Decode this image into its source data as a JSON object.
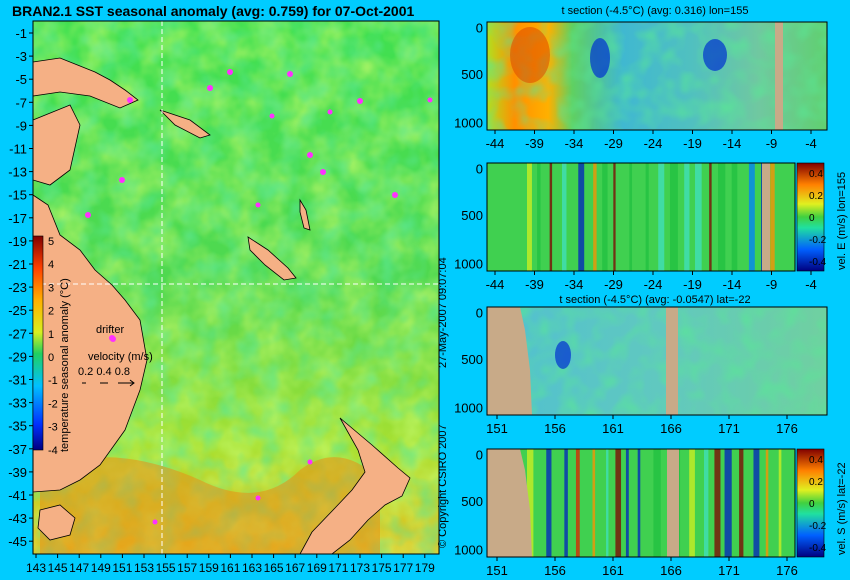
{
  "map": {
    "title": "BRAN2.1 SST seasonal anomaly (avg: 0.759) for 07-Oct-2001",
    "lat_ticks": [
      "-1",
      "-3",
      "-5",
      "-7",
      "-9",
      "-11",
      "-13",
      "-15",
      "-17",
      "-19",
      "-21",
      "-23",
      "-25",
      "-27",
      "-29",
      "-31",
      "-33",
      "-35",
      "-37",
      "-39",
      "-41",
      "-43",
      "-45"
    ],
    "lon_ticks": [
      "143",
      "145",
      "147",
      "149",
      "151",
      "153",
      "155",
      "157",
      "159",
      "161",
      "163",
      "165",
      "167",
      "169",
      "171",
      "173",
      "175",
      "177",
      "179"
    ],
    "colorbar": {
      "ticks": [
        "5",
        "4",
        "3",
        "2",
        "1",
        "0",
        "-1",
        "-2",
        "-3",
        "-4"
      ],
      "label": "temperature seasonal anomaly (°C)",
      "range": [
        -4,
        5
      ]
    },
    "legend": {
      "drifter": "drifter",
      "velocity_label": "velocity (m/s)",
      "velocity_values": "0.2 0.4 0.8"
    },
    "section_lines": {
      "lon": 155,
      "lat": -22
    }
  },
  "panels": [
    {
      "title": "t section (-4.5°C) (avg: 0.316) lon=155",
      "x_ticks": [
        "-44",
        "-39",
        "-34",
        "-29",
        "-24",
        "-19",
        "-14",
        "-9",
        "-4"
      ],
      "y_ticks": [
        "0",
        "500",
        "1000"
      ],
      "has_colorbar": false
    },
    {
      "title": "",
      "x_ticks": [
        "-44",
        "-39",
        "-34",
        "-29",
        "-24",
        "-19",
        "-14",
        "-9",
        "-4"
      ],
      "y_ticks": [
        "0",
        "500",
        "1000"
      ],
      "has_colorbar": true,
      "cbar_ticks": [
        "0.4",
        "0.2",
        "0",
        "-0.2",
        "-0.4"
      ],
      "cbar_label": "vel. E (m/s) lon=155"
    },
    {
      "title": "t section (-4.5°C) (avg: -0.0547) lat=-22",
      "x_ticks": [
        "151",
        "156",
        "161",
        "166",
        "171",
        "176"
      ],
      "y_ticks": [
        "0",
        "500",
        "1000"
      ],
      "has_colorbar": false
    },
    {
      "title": "",
      "x_ticks": [
        "151",
        "156",
        "161",
        "166",
        "171",
        "176"
      ],
      "y_ticks": [
        "0",
        "500",
        "1000"
      ],
      "has_colorbar": true,
      "cbar_ticks": [
        "0.4",
        "0.2",
        "0",
        "-0.2",
        "-0.4"
      ],
      "cbar_label": "vel. S (m/s) lat=-22"
    }
  ],
  "credits": {
    "date": "27-May-2007 09:07:04",
    "copyright": "© Copyright CSIRO 2007"
  }
}
